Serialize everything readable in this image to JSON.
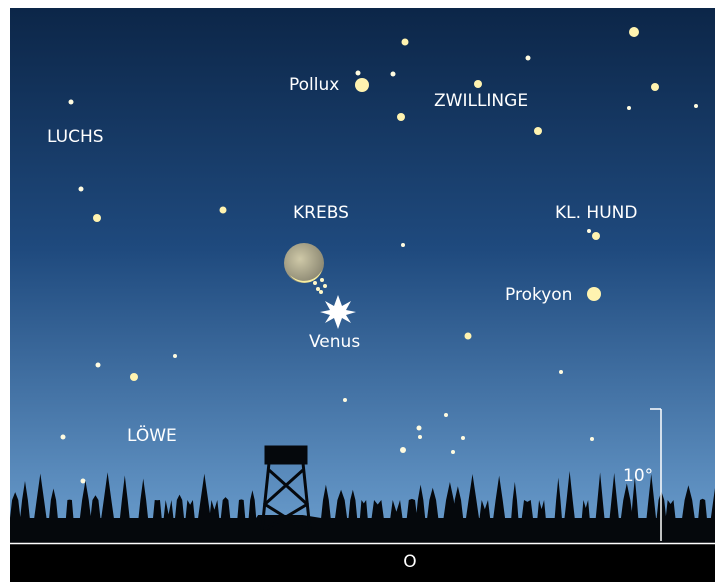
{
  "constellations": [
    "LUCHS",
    "ZWILLINGE",
    "KREBS",
    "KL. HUND",
    "LÖWE"
  ],
  "objects": [
    "Pollux",
    "Prokyon",
    "Venus"
  ],
  "scale_label": "10°",
  "direction": "O"
}
